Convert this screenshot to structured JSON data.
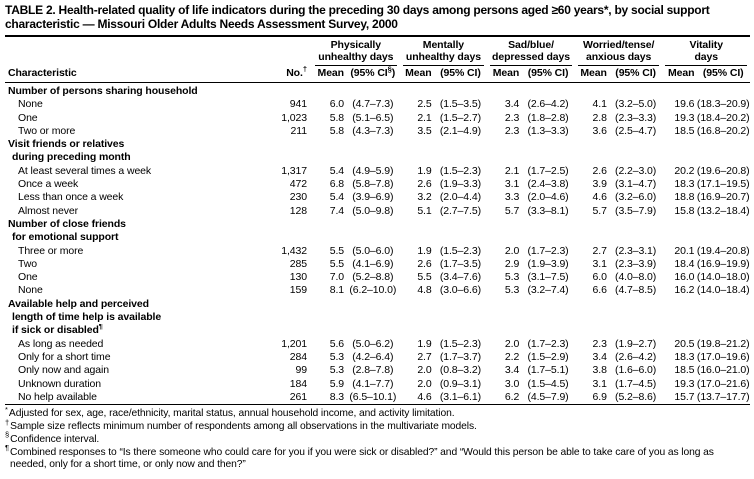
{
  "title": "TABLE 2. Health-related quality of life indicators during the preceding 30 days among persons aged ≥60 years*, by social support characteristic — Missouri Older Adults Needs Assessment Survey, 2000",
  "table": {
    "characteristic_header": "Characteristic",
    "no_header": {
      "text": "No.",
      "sup": "†"
    },
    "groups": [
      {
        "line1": "Physically",
        "line2": "unhealthy days",
        "mean": "Mean",
        "ci_pre": "(95% CI",
        "ci_sup": "§",
        "ci_post": ")"
      },
      {
        "line1": "Mentally",
        "line2": "unhealthy days",
        "mean": "Mean",
        "ci_pre": "(95% CI",
        "ci_sup": "",
        "ci_post": ")"
      },
      {
        "line1": "Sad/blue/",
        "line2": "depressed days",
        "mean": "Mean",
        "ci_pre": "(95% CI",
        "ci_sup": "",
        "ci_post": ")"
      },
      {
        "line1": "Worried/tense/",
        "line2": "anxious days",
        "mean": "Mean",
        "ci_pre": "(95% CI",
        "ci_sup": "",
        "ci_post": ")"
      },
      {
        "line1": "Vitality",
        "line2": "days",
        "mean": "Mean",
        "ci_pre": "(95% CI",
        "ci_sup": "",
        "ci_post": ")"
      }
    ],
    "sections": [
      {
        "header_lines": [
          "Number of persons sharing household"
        ],
        "header_sup": "",
        "rows": [
          {
            "label": "None",
            "no": "941",
            "values": [
              "6.0",
              "(4.7–7.3)",
              "2.5",
              "(1.5–3.5)",
              "3.4",
              "(2.6–4.2)",
              "4.1",
              "(3.2–5.0)",
              "19.6",
              "(18.3–20.9)"
            ]
          },
          {
            "label": "One",
            "no": "1,023",
            "values": [
              "5.8",
              "(5.1–6.5)",
              "2.1",
              "(1.5–2.7)",
              "2.3",
              "(1.8–2.8)",
              "2.8",
              "(2.3–3.3)",
              "19.3",
              "(18.4–20.2)"
            ]
          },
          {
            "label": "Two or more",
            "no": "211",
            "values": [
              "5.8",
              "(4.3–7.3)",
              "3.5",
              "(2.1–4.9)",
              "2.3",
              "(1.3–3.3)",
              "3.6",
              "(2.5–4.7)",
              "18.5",
              "(16.8–20.2)"
            ]
          }
        ]
      },
      {
        "header_lines": [
          "Visit friends or relatives",
          "during preceding month"
        ],
        "header_sup": "",
        "rows": [
          {
            "label": "At least several times a week",
            "no": "1,317",
            "values": [
              "5.4",
              "(4.9–5.9)",
              "1.9",
              "(1.5–2.3)",
              "2.1",
              "(1.7–2.5)",
              "2.6",
              "(2.2–3.0)",
              "20.2",
              "(19.6–20.8)"
            ]
          },
          {
            "label": "Once a week",
            "no": "472",
            "values": [
              "6.8",
              "(5.8–7.8)",
              "2.6",
              "(1.9–3.3)",
              "3.1",
              "(2.4–3.8)",
              "3.9",
              "(3.1–4.7)",
              "18.3",
              "(17.1–19.5)"
            ]
          },
          {
            "label": "Less than once a week",
            "no": "230",
            "values": [
              "5.4",
              "(3.9–6.9)",
              "3.2",
              "(2.0–4.4)",
              "3.3",
              "(2.0–4.6)",
              "4.6",
              "(3.2–6.0)",
              "18.8",
              "(16.9–20.7)"
            ]
          },
          {
            "label": "Almost never",
            "no": "128",
            "values": [
              "7.4",
              "(5.0–9.8)",
              "5.1",
              "(2.7–7.5)",
              "5.7",
              "(3.3–8.1)",
              "5.7",
              "(3.5–7.9)",
              "15.8",
              "(13.2–18.4)"
            ]
          }
        ]
      },
      {
        "header_lines": [
          "Number of close friends",
          "for emotional support"
        ],
        "header_sup": "",
        "rows": [
          {
            "label": "Three or more",
            "no": "1,432",
            "values": [
              "5.5",
              "(5.0–6.0)",
              "1.9",
              "(1.5–2.3)",
              "2.0",
              "(1.7–2.3)",
              "2.7",
              "(2.3–3.1)",
              "20.1",
              "(19.4–20.8)"
            ]
          },
          {
            "label": "Two",
            "no": "285",
            "values": [
              "5.5",
              "(4.1–6.9)",
              "2.6",
              "(1.7–3.5)",
              "2.9",
              "(1.9–3.9)",
              "3.1",
              "(2.3–3.9)",
              "18.4",
              "(16.9–19.9)"
            ]
          },
          {
            "label": "One",
            "no": "130",
            "values": [
              "7.0",
              "(5.2–8.8)",
              "5.5",
              "(3.4–7.6)",
              "5.3",
              "(3.1–7.5)",
              "6.0",
              "(4.0–8.0)",
              "16.0",
              "(14.0–18.0)"
            ]
          },
          {
            "label": "None",
            "no": "159",
            "values": [
              "8.1",
              "(6.2–10.0)",
              "4.8",
              "(3.0–6.6)",
              "5.3",
              "(3.2–7.4)",
              "6.6",
              "(4.7–8.5)",
              "16.2",
              "(14.0–18.4)"
            ]
          }
        ]
      },
      {
        "header_lines": [
          "Available help and perceived",
          "length of time help is available",
          "if sick or disabled"
        ],
        "header_sup": "¶",
        "rows": [
          {
            "label": "As long as needed",
            "no": "1,201",
            "values": [
              "5.6",
              "(5.0–6.2)",
              "1.9",
              "(1.5–2.3)",
              "2.0",
              "(1.7–2.3)",
              "2.3",
              "(1.9–2.7)",
              "20.5",
              "(19.8–21.2)"
            ]
          },
          {
            "label": "Only for a short time",
            "no": "284",
            "values": [
              "5.3",
              "(4.2–6.4)",
              "2.7",
              "(1.7–3.7)",
              "2.2",
              "(1.5–2.9)",
              "3.4",
              "(2.6–4.2)",
              "18.3",
              "(17.0–19.6)"
            ]
          },
          {
            "label": "Only now and again",
            "no": "99",
            "values": [
              "5.3",
              "(2.8–7.8)",
              "2.0",
              "(0.8–3.2)",
              "3.4",
              "(1.7–5.1)",
              "3.8",
              "(1.6–6.0)",
              "18.5",
              "(16.0–21.0)"
            ]
          },
          {
            "label": "Unknown duration",
            "no": "184",
            "values": [
              "5.9",
              "(4.1–7.7)",
              "2.0",
              "(0.9–3.1)",
              "3.0",
              "(1.5–4.5)",
              "3.1",
              "(1.7–4.5)",
              "19.3",
              "(17.0–21.6)"
            ]
          },
          {
            "label": "No help available",
            "no": "261",
            "values": [
              "8.3",
              "(6.5–10.1)",
              "4.6",
              "(3.1–6.1)",
              "6.2",
              "(4.5–7.9)",
              "6.9",
              "(5.2–8.6)",
              "15.7",
              "(13.7–17.7)"
            ]
          }
        ]
      }
    ]
  },
  "footnotes": [
    {
      "marker": "*",
      "text": "Adjusted for sex, age, race/ethnicity, marital status, annual household income, and activity limitation."
    },
    {
      "marker": "†",
      "text": "Sample size reflects minimum number of respondents among all observations in the multivariate models."
    },
    {
      "marker": "§",
      "text": "Confidence interval."
    },
    {
      "marker": "¶",
      "text": "Combined responses to “Is there someone who could care for you if you were sick or disabled?” and “Would this person be able to take care of you as long as needed, only for a short time, or only now and then?”"
    }
  ]
}
